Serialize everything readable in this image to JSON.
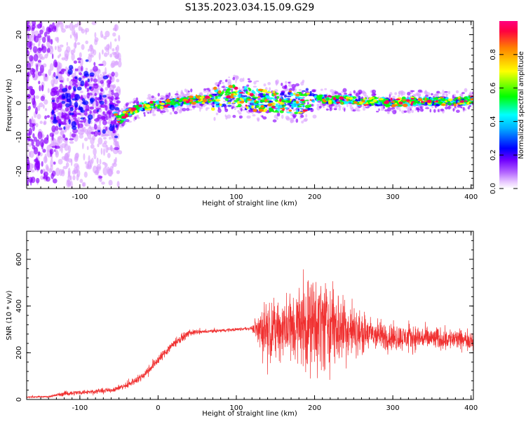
{
  "title": "S135.2023.034.15.09.G29",
  "colors": {
    "snr_line": "#f03030",
    "axis": "#000000",
    "background": "#ffffff"
  },
  "chart_data": [
    {
      "type": "heatmap",
      "title": "S135.2023.034.15.09.G29",
      "xlabel": "Height of straight line (km)",
      "ylabel": "Frequency (Hz)",
      "xlim": [
        -168,
        403
      ],
      "ylim": [
        -25,
        24
      ],
      "x_ticks": [
        -100,
        0,
        100,
        200,
        300,
        400
      ],
      "y_ticks": [
        -20,
        -10,
        0,
        10,
        20
      ],
      "colorbar": {
        "label": "Normalized spectral amplitude",
        "range": [
          0.0,
          1.0
        ],
        "ticks": [
          0.0,
          0.2,
          0.4,
          0.6,
          0.8
        ],
        "colormap": [
          "#ffffff",
          "#d9a0ff",
          "#8a00ff",
          "#0000ff",
          "#00ffff",
          "#00ff00",
          "#ffff00",
          "#ff8000",
          "#ff0060"
        ]
      },
      "ridge": {
        "x": [
          -168,
          -140,
          -120,
          -100,
          -80,
          -60,
          -50,
          -40,
          -20,
          0,
          20,
          40,
          60,
          80,
          100,
          120,
          140,
          160,
          180,
          200,
          220,
          240,
          260,
          280,
          300,
          320,
          340,
          360,
          380,
          403
        ],
        "freq": [
          0,
          0,
          -1,
          2,
          1,
          -2,
          -5,
          -3,
          -1,
          -0.5,
          0,
          1,
          1,
          1.5,
          2,
          1,
          0.5,
          0.5,
          0,
          1.5,
          1,
          1,
          0.5,
          0.5,
          0,
          0.5,
          0.5,
          0.5,
          0.5,
          1
        ]
      }
    },
    {
      "type": "line",
      "xlabel": "Height of straight line (km)",
      "ylabel": "SNR (10 * v/v)",
      "xlim": [
        -168,
        403
      ],
      "ylim": [
        0,
        720
      ],
      "x_ticks": [
        -100,
        0,
        100,
        200,
        300,
        400
      ],
      "y_ticks": [
        0,
        200,
        400,
        600
      ],
      "envelope": {
        "x": [
          -168,
          -140,
          -120,
          -100,
          -80,
          -60,
          -40,
          -20,
          0,
          20,
          40,
          60,
          80,
          100,
          120,
          125,
          130,
          150,
          170,
          190,
          210,
          230,
          250,
          270,
          290,
          310,
          330,
          350,
          370,
          390,
          403
        ],
        "mean": [
          10,
          12,
          25,
          30,
          35,
          40,
          60,
          100,
          170,
          240,
          285,
          290,
          295,
          300,
          305,
          305,
          300,
          300,
          310,
          320,
          330,
          310,
          290,
          280,
          270,
          265,
          265,
          260,
          260,
          255,
          260
        ],
        "spread": [
          5,
          5,
          15,
          15,
          15,
          15,
          20,
          25,
          30,
          30,
          20,
          10,
          10,
          10,
          10,
          60,
          150,
          180,
          220,
          280,
          300,
          250,
          150,
          110,
          90,
          80,
          80,
          70,
          70,
          60,
          60
        ]
      }
    }
  ]
}
